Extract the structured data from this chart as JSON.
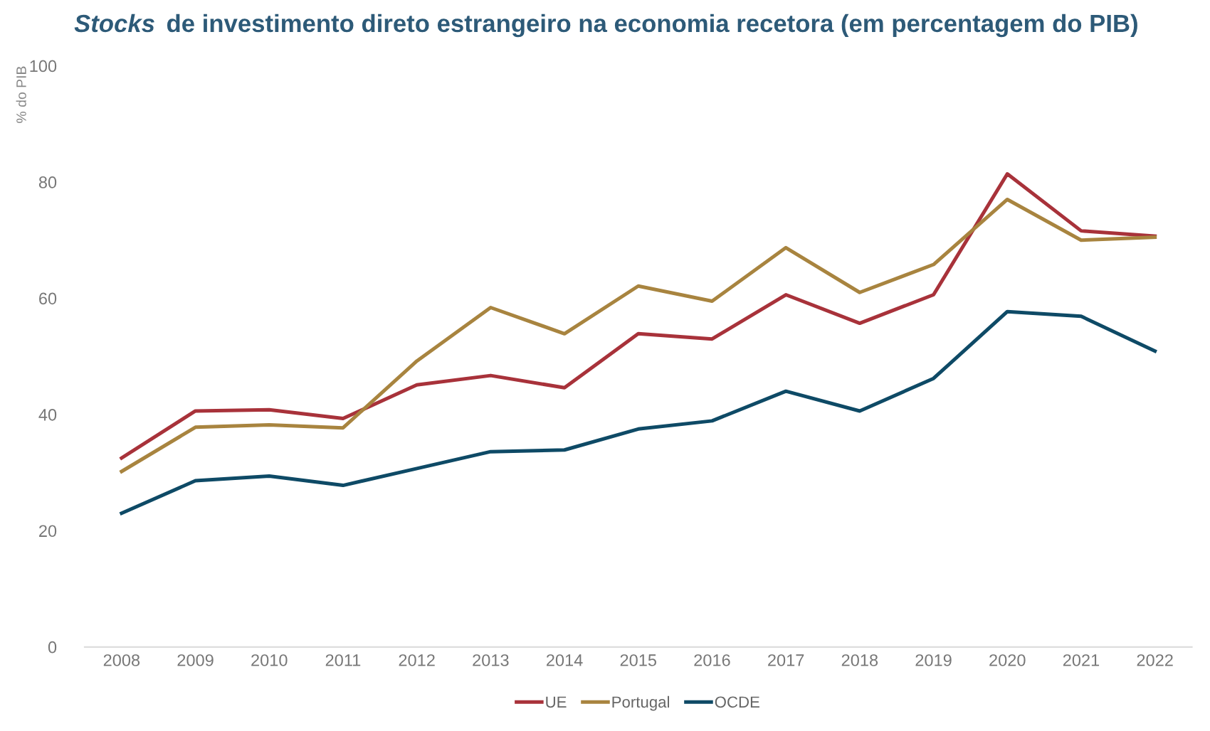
{
  "chart_data": {
    "type": "line",
    "title": "Stocks de investimento direto estrangeiro na economia recetora (em percentagem do PIB)",
    "ylabel": "% do PIB",
    "categories": [
      "2008",
      "2009",
      "2010",
      "2011",
      "2012",
      "2013",
      "2014",
      "2015",
      "2016",
      "2017",
      "2018",
      "2019",
      "2020",
      "2021",
      "2022"
    ],
    "series": [
      {
        "name": "UE",
        "color": "#a8323a",
        "values": [
          32.5,
          40.6,
          40.8,
          39.3,
          45.1,
          46.7,
          44.6,
          53.9,
          53.0,
          60.6,
          55.7,
          60.6,
          81.4,
          71.6,
          70.7
        ]
      },
      {
        "name": "Portugal",
        "color": "#a8843f",
        "values": [
          30.2,
          37.8,
          38.2,
          37.7,
          49.2,
          58.4,
          53.9,
          62.1,
          59.5,
          68.7,
          61.0,
          65.8,
          77.0,
          70.0,
          70.5
        ]
      },
      {
        "name": "OCDE",
        "color": "#0e4a66",
        "values": [
          23.0,
          28.6,
          29.4,
          27.8,
          30.7,
          33.6,
          33.9,
          37.5,
          38.9,
          44.0,
          40.6,
          46.2,
          57.7,
          56.9,
          50.9
        ]
      }
    ],
    "ylim": [
      0,
      100
    ],
    "yticks": [
      0,
      20,
      40,
      60,
      80,
      100
    ],
    "grid": false,
    "legend": "bottom",
    "marker": "none",
    "line_style": "solid"
  }
}
